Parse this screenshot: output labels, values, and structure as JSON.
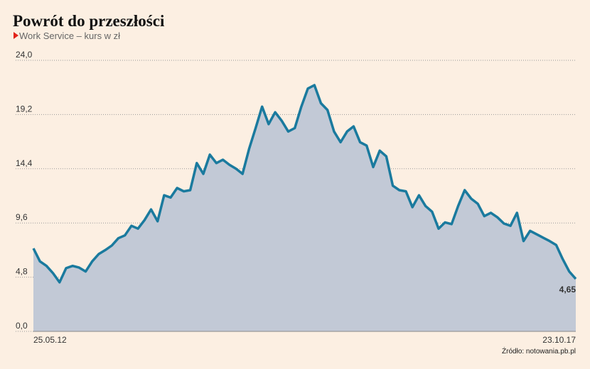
{
  "chart_data": {
    "type": "area",
    "title": "Powrót do przeszłości",
    "subtitle": "Work Service – kurs w zł",
    "source": "Źródło: notowania.pb.pl",
    "color": "#1a7a9e",
    "fill": "#c2c9d6",
    "grid": true,
    "ylim": [
      0,
      24
    ],
    "yticks": [
      {
        "value": 0,
        "label": "0,0"
      },
      {
        "value": 4.8,
        "label": "4,8"
      },
      {
        "value": 9.6,
        "label": "9,6"
      },
      {
        "value": 14.4,
        "label": "14,4"
      },
      {
        "value": 19.2,
        "label": "19,2"
      },
      {
        "value": 24,
        "label": "24,0"
      }
    ],
    "categories": [
      "25.05.12",
      null,
      null,
      null,
      null,
      null,
      null,
      null,
      null,
      null,
      null,
      null,
      null,
      null,
      null,
      null,
      null,
      null,
      null,
      null,
      null,
      null,
      null,
      null,
      null,
      null,
      null,
      null,
      null,
      null,
      null,
      null,
      null,
      null,
      null,
      null,
      null,
      null,
      null,
      null,
      null,
      null,
      null,
      null,
      null,
      null,
      null,
      null,
      null,
      null,
      null,
      null,
      null,
      null,
      null,
      null,
      null,
      null,
      null,
      null,
      null,
      null,
      null,
      null,
      null,
      null,
      null,
      null,
      null,
      null,
      null,
      null,
      null,
      null,
      null,
      null,
      null,
      null,
      null,
      null,
      null,
      null,
      null,
      "23.10.17"
    ],
    "values": [
      7.35,
      6.2,
      5.8,
      5.15,
      4.35,
      5.6,
      5.8,
      5.65,
      5.3,
      6.2,
      6.85,
      7.2,
      7.6,
      8.25,
      8.5,
      9.35,
      9.1,
      9.85,
      10.8,
      9.75,
      12.05,
      11.85,
      12.7,
      12.4,
      12.5,
      14.9,
      13.95,
      15.65,
      14.9,
      15.2,
      14.75,
      14.4,
      13.95,
      16.15,
      18.0,
      19.9,
      18.35,
      19.4,
      18.65,
      17.7,
      18.0,
      19.9,
      21.5,
      21.8,
      20.2,
      19.6,
      17.7,
      16.75,
      17.7,
      18.15,
      16.75,
      16.45,
      14.55,
      16.0,
      15.5,
      12.9,
      12.5,
      12.4,
      11.0,
      12.05,
      11.1,
      10.6,
      9.1,
      9.65,
      9.5,
      11.1,
      12.5,
      11.75,
      11.3,
      10.2,
      10.5,
      10.1,
      9.55,
      9.35,
      10.5,
      8.0,
      8.9,
      8.6,
      8.3,
      8.0,
      7.65,
      6.4,
      5.3,
      4.65
    ],
    "value_labels": [
      null,
      null,
      null,
      null,
      null,
      null,
      null,
      null,
      null,
      null,
      null,
      null,
      null,
      null,
      null,
      null,
      null,
      null,
      null,
      null,
      null,
      null,
      null,
      null,
      null,
      null,
      null,
      null,
      null,
      null,
      null,
      null,
      null,
      null,
      null,
      null,
      null,
      null,
      null,
      null,
      null,
      null,
      null,
      null,
      null,
      null,
      null,
      null,
      null,
      null,
      null,
      null,
      null,
      null,
      null,
      null,
      null,
      null,
      null,
      null,
      null,
      null,
      null,
      null,
      null,
      null,
      null,
      null,
      null,
      null,
      null,
      null,
      null,
      null,
      null,
      null,
      null,
      null,
      null,
      null,
      null,
      null,
      null,
      "4,65"
    ]
  }
}
